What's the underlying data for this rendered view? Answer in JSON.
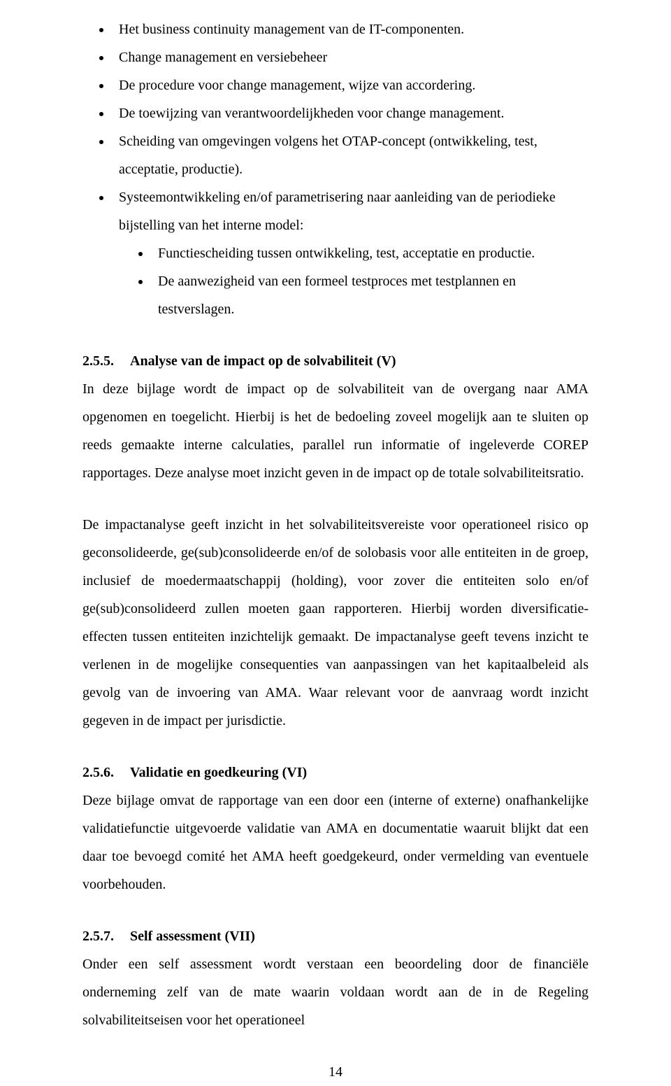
{
  "text_color": "#000000",
  "background_color": "#ffffff",
  "font_family": "Times New Roman",
  "font_size_pt": 12,
  "list": {
    "items": [
      {
        "text": "Het business continuity management van de IT-componenten."
      },
      {
        "text": "Change management en versiebeheer"
      },
      {
        "text": "De procedure voor change management, wijze van accordering."
      },
      {
        "text": "De toewijzing van verantwoordelijkheden voor change management."
      },
      {
        "text": "Scheiding van omgevingen volgens het OTAP-concept (ontwikkeling, test, acceptatie, productie)."
      },
      {
        "text": "Systeemontwikkeling en/of parametrisering naar aanleiding van de periodieke bijstelling van het interne model:",
        "children": [
          {
            "text": "Functiescheiding tussen ontwikkeling, test, acceptatie en productie."
          },
          {
            "text": "De aanwezigheid van een formeel testproces met testplannen en testverslagen."
          }
        ]
      }
    ]
  },
  "sections": [
    {
      "number": "2.5.5.",
      "title": "Analyse van de impact op de solvabiliteit (V)",
      "paragraphs": [
        "In deze bijlage wordt de impact op de solvabiliteit van de overgang naar AMA opgenomen en toegelicht. Hierbij is het de bedoeling zoveel mogelijk aan te sluiten op reeds gemaakte interne calculaties, parallel run informatie of ingeleverde COREP rapportages. Deze analyse moet inzicht geven in de impact op de totale solvabiliteitsratio.",
        "De impactanalyse geeft inzicht in het solvabiliteitsvereiste voor operationeel risico op geconsolideerde, ge(sub)consolideerde en/of de solobasis voor alle entiteiten in de groep, inclusief de moedermaatschappij (holding), voor zover die entiteiten solo en/of ge(sub)consolideerd zullen moeten gaan rapporteren. Hierbij worden diversificatie-effecten tussen entiteiten inzichtelijk gemaakt. De impactanalyse geeft tevens inzicht te verlenen in de mogelijke consequenties van aanpassingen van het kapitaalbeleid als gevolg van de invoering van AMA. Waar relevant voor de aanvraag wordt inzicht gegeven in de impact per jurisdictie."
      ]
    },
    {
      "number": "2.5.6.",
      "title": "Validatie en goedkeuring (VI)",
      "paragraphs": [
        "Deze bijlage omvat de rapportage van een door een (interne of externe) onafhankelijke validatiefunctie uitgevoerde validatie van AMA en documentatie waaruit blijkt dat een daar toe bevoegd comité het AMA heeft goedgekeurd, onder vermelding van eventuele voorbehouden."
      ]
    },
    {
      "number": "2.5.7.",
      "title": "Self assessment (VII)",
      "paragraphs": [
        "Onder een self assessment wordt verstaan een beoordeling door de financiële onderneming zelf van de mate waarin voldaan wordt aan de in de Regeling solvabiliteitseisen voor het operationeel"
      ]
    }
  ],
  "page_number": "14"
}
